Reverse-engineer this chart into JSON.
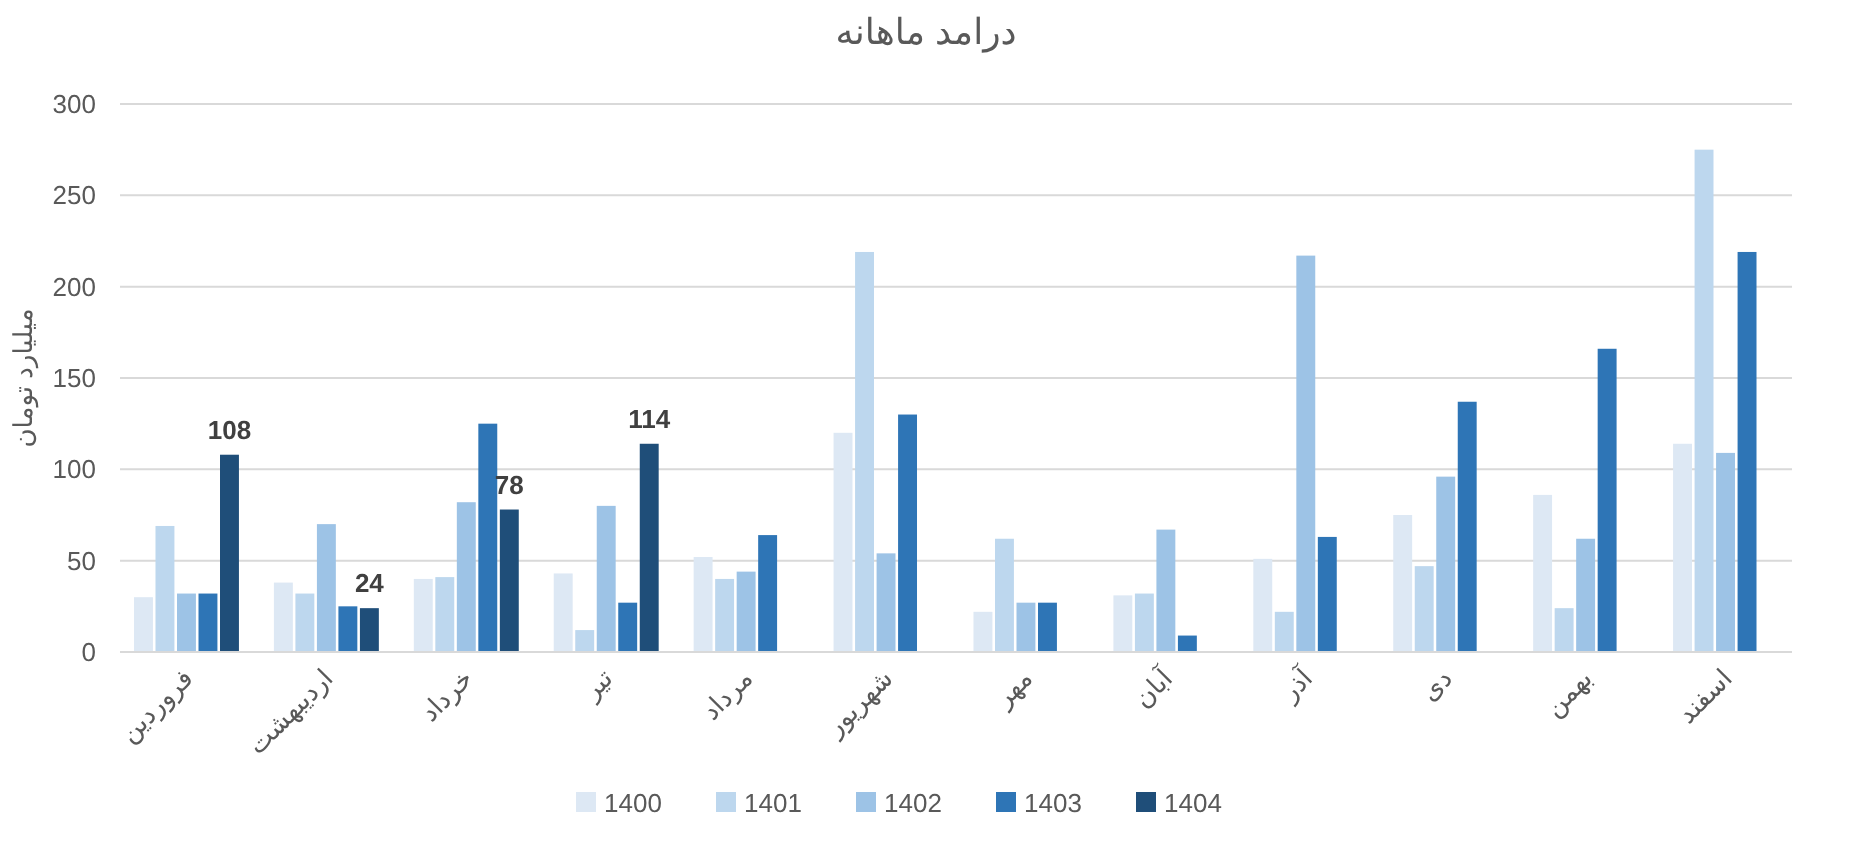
{
  "chart_data": {
    "type": "bar",
    "title": "درامد ماهانه",
    "ylabel": "میلیارد تومان",
    "categories": [
      "فروردین",
      "اردیبهشت",
      "خرداد",
      "تیر",
      "مرداد",
      "شهریور",
      "مهر",
      "آبان",
      "آذر",
      "دی",
      "بهمن",
      "اسفند"
    ],
    "series": [
      {
        "name": "1400",
        "color": "#dde8f4",
        "values": [
          30,
          38,
          40,
          43,
          52,
          120,
          22,
          31,
          51,
          75,
          86,
          114
        ]
      },
      {
        "name": "1401",
        "color": "#bdd7ee",
        "values": [
          69,
          32,
          41,
          12,
          40,
          219,
          62,
          32,
          22,
          47,
          24,
          275
        ]
      },
      {
        "name": "1402",
        "color": "#9dc3e6",
        "values": [
          32,
          70,
          82,
          80,
          44,
          54,
          27,
          67,
          217,
          96,
          62,
          109
        ]
      },
      {
        "name": "1403",
        "color": "#2e75b6",
        "values": [
          32,
          25,
          125,
          27,
          64,
          130,
          27,
          9,
          63,
          137,
          166,
          219
        ]
      },
      {
        "name": "1404",
        "color": "#1f4e79",
        "values": [
          108,
          24,
          78,
          114,
          null,
          null,
          null,
          null,
          null,
          null,
          null,
          null
        ],
        "value_labels": [
          "108",
          "24",
          "78",
          "114",
          null,
          null,
          null,
          null,
          null,
          null,
          null,
          null
        ]
      }
    ],
    "ylim": [
      0,
      300
    ],
    "yticks": [
      0,
      50,
      100,
      150,
      200,
      250,
      300
    ],
    "grid": "y",
    "legend": "bottom"
  }
}
